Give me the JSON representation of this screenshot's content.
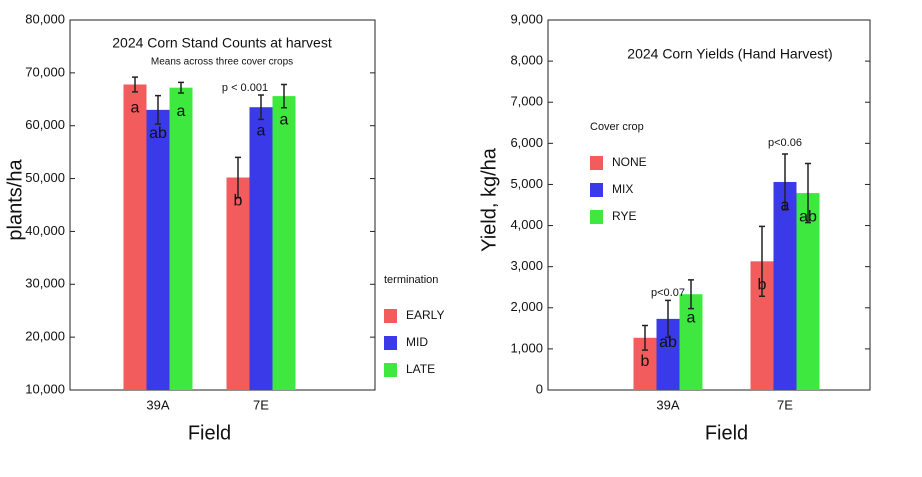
{
  "chart_data": [
    {
      "type": "bar",
      "title": "2024 Corn Stand Counts at harvest",
      "subtitle": "Means across three cover crops",
      "ylabel": "plants/ha",
      "xlabel": "Field",
      "categories": [
        "39A",
        "7E"
      ],
      "legend_title": "termination",
      "legend_position": "right",
      "series": [
        {
          "name": "EARLY",
          "color": "#f25c5c",
          "values": [
            67800,
            50200
          ],
          "errors": [
            1400,
            3800
          ],
          "letters": [
            "a",
            "b"
          ]
        },
        {
          "name": "MID",
          "color": "#3a3ae8",
          "values": [
            63000,
            63500
          ],
          "errors": [
            2700,
            2300
          ],
          "letters": [
            "ab",
            "a"
          ]
        },
        {
          "name": "LATE",
          "color": "#3fe83f",
          "values": [
            67200,
            65600
          ],
          "errors": [
            1000,
            2200
          ],
          "letters": [
            "a",
            "a"
          ]
        }
      ],
      "annotations": [
        "p < 0.001"
      ],
      "ylim": [
        10000,
        80000
      ],
      "yticks": [
        {
          "value": 10000,
          "label": "10,000"
        },
        {
          "value": 20000,
          "label": "20,000"
        },
        {
          "value": 30000,
          "label": "30,000"
        },
        {
          "value": 40000,
          "label": "40,000"
        },
        {
          "value": 50000,
          "label": "50,000"
        },
        {
          "value": 60000,
          "label": "60,000"
        },
        {
          "value": 70000,
          "label": "70,000"
        },
        {
          "value": 80000,
          "label": "80,000"
        }
      ]
    },
    {
      "type": "bar",
      "title": "2024 Corn Yields (Hand Harvest)",
      "ylabel": "Yield, kg/ha",
      "xlabel": "Field",
      "categories": [
        "39A",
        "7E"
      ],
      "legend_title": "Cover crop",
      "legend_position": "upper left",
      "series": [
        {
          "name": "NONE",
          "color": "#f25c5c",
          "values": [
            1270,
            3130
          ],
          "errors": [
            300,
            850
          ],
          "letters": [
            "b",
            "b"
          ]
        },
        {
          "name": "MIX",
          "color": "#3a3ae8",
          "values": [
            1730,
            5060
          ],
          "errors": [
            450,
            680
          ],
          "letters": [
            "ab",
            "a"
          ]
        },
        {
          "name": "RYE",
          "color": "#3fe83f",
          "values": [
            2330,
            4790
          ],
          "errors": [
            350,
            720
          ],
          "letters": [
            "a",
            "ab"
          ]
        }
      ],
      "annotations": [
        "p<0.07",
        "p<0.06"
      ],
      "ylim": [
        0,
        9000
      ],
      "yticks": [
        0,
        {
          "value": 1000,
          "label": "1,000"
        },
        {
          "value": 2000,
          "label": "2,000"
        },
        {
          "value": 3000,
          "label": "3,000"
        },
        {
          "value": 4000,
          "label": "4,000"
        },
        {
          "value": 5000,
          "label": "5,000"
        },
        {
          "value": 6000,
          "label": "6,000"
        },
        {
          "value": 7000,
          "label": "7,000"
        },
        {
          "value": 8000,
          "label": "8,000"
        },
        {
          "value": 9000,
          "label": "9,000"
        }
      ]
    }
  ]
}
